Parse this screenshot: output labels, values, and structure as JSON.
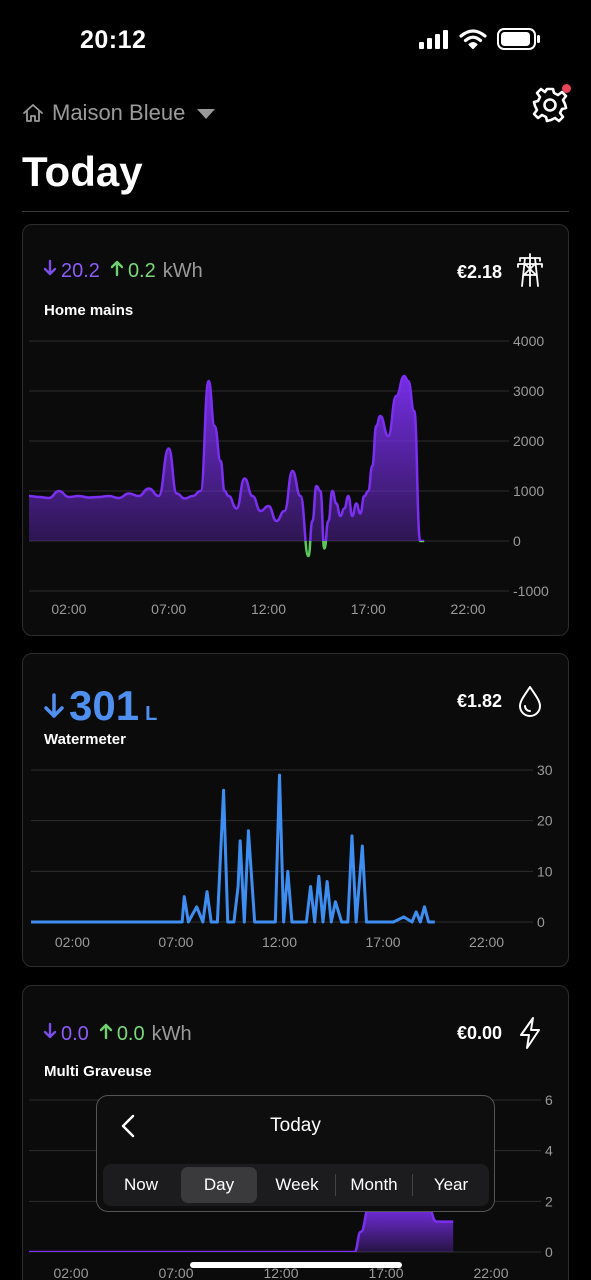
{
  "status": {
    "time": "20:12"
  },
  "header": {
    "home_name": "Maison Bleue",
    "title": "Today"
  },
  "cards": [
    {
      "down_value": "20.2",
      "up_value": "0.2",
      "unit": "kWh",
      "label": "Home mains",
      "cost": "€2.18",
      "icon": "power-pylon-icon"
    },
    {
      "value": "301",
      "unit": "L",
      "label": "Watermeter",
      "cost": "€1.82",
      "icon": "water-drop-icon"
    },
    {
      "down_value": "0.0",
      "up_value": "0.0",
      "unit": "kWh",
      "label": "Multi Graveuse",
      "cost": "€0.00",
      "icon": "lightning-icon"
    }
  ],
  "popup": {
    "title": "Today",
    "options": [
      "Now",
      "Day",
      "Week",
      "Month",
      "Year"
    ],
    "selected": "Day"
  },
  "colors": {
    "purple": "#7b2ff0",
    "green": "#5ac95a",
    "blue": "#3d8ef0"
  },
  "chart_data": [
    {
      "type": "area",
      "series_color": "#7b2ff0",
      "x_ticks": [
        "02:00",
        "07:00",
        "12:00",
        "17:00",
        "22:00"
      ],
      "y_ticks": [
        "4000",
        "3000",
        "2000",
        "1000",
        "0",
        "-1000"
      ],
      "ylim": [
        -1000,
        4000
      ],
      "xlim": [
        0,
        24
      ],
      "x": [
        0,
        0.5,
        1,
        1.5,
        2,
        2.5,
        3,
        3.5,
        4,
        4.5,
        5,
        5.5,
        6,
        6.5,
        7,
        7.4,
        7.8,
        8.2,
        8.6,
        9,
        9.3,
        9.6,
        9.8,
        10,
        10.4,
        10.8,
        11.2,
        11.6,
        12,
        12.4,
        12.8,
        13.2,
        13.6,
        14,
        14.2,
        14.4,
        14.6,
        14.8,
        15,
        15.2,
        15.4,
        15.6,
        15.8,
        16,
        16.2,
        16.4,
        16.6,
        16.8,
        17,
        17.2,
        17.4,
        17.6,
        18,
        18.4,
        18.8,
        19,
        19.3,
        19.6,
        19.8
      ],
      "values": [
        900,
        880,
        860,
        1000,
        880,
        900,
        870,
        880,
        900,
        860,
        950,
        900,
        1050,
        900,
        1850,
        950,
        850,
        900,
        1000,
        3200,
        2300,
        1600,
        1000,
        900,
        650,
        1250,
        900,
        600,
        700,
        400,
        600,
        1400,
        900,
        -300,
        400,
        1100,
        1000,
        -150,
        400,
        1000,
        750,
        500,
        650,
        900,
        500,
        750,
        550,
        900,
        1000,
        1500,
        2300,
        2500,
        2100,
        2900,
        3300,
        3200,
        2600,
        0,
        0
      ],
      "negative_color": "#5ac95a"
    },
    {
      "type": "line",
      "series_color": "#3d8ef0",
      "x_ticks": [
        "02:00",
        "07:00",
        "12:00",
        "17:00",
        "22:00"
      ],
      "y_ticks": [
        "30",
        "20",
        "10",
        "0"
      ],
      "ylim": [
        0,
        30
      ],
      "xlim": [
        0,
        24
      ],
      "x": [
        0,
        7.3,
        7.4,
        7.6,
        8.0,
        8.3,
        8.5,
        8.7,
        9.0,
        9.3,
        9.5,
        9.8,
        10.0,
        10.1,
        10.3,
        10.5,
        10.8,
        11.0,
        11.8,
        12.0,
        12.2,
        12.4,
        12.6,
        12.8,
        13.3,
        13.5,
        13.7,
        13.9,
        14.1,
        14.3,
        14.5,
        14.7,
        15.0,
        15.3,
        15.5,
        15.7,
        16.0,
        16.2,
        16.4,
        16.6,
        17.5,
        18.0,
        18.4,
        18.6,
        18.8,
        19.0,
        19.2,
        19.5
      ],
      "values": [
        0,
        0,
        5,
        0,
        3,
        0,
        6,
        0,
        0,
        26,
        0,
        0,
        7,
        16,
        0,
        18,
        0,
        0,
        0,
        29,
        0,
        10,
        0,
        0,
        0,
        7,
        0,
        9,
        0,
        8,
        0,
        4,
        0,
        0,
        17,
        0,
        15,
        0,
        0,
        0,
        0,
        1,
        0,
        2,
        0,
        3,
        0,
        0
      ]
    },
    {
      "type": "area",
      "series_color": "#7b2ff0",
      "x_ticks": [
        "02:00",
        "07:00",
        "12:00",
        "17:00",
        "22:00"
      ],
      "y_ticks": [
        "6",
        "4",
        "2",
        "0"
      ],
      "ylim": [
        0,
        6
      ],
      "xlim": [
        0,
        24
      ],
      "x": [
        0,
        15.5,
        15.8,
        16.2,
        17.5,
        19.0,
        19.4,
        20.2
      ],
      "values": [
        0,
        0,
        0.8,
        1.8,
        1.8,
        1.8,
        1.2,
        1.2
      ]
    }
  ]
}
